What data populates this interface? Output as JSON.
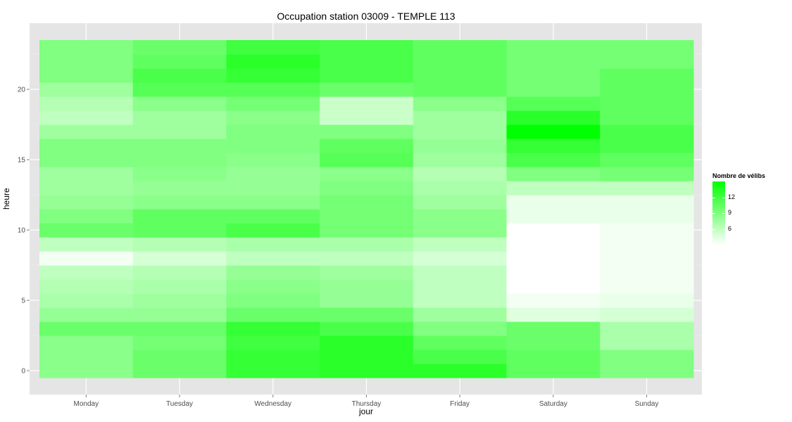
{
  "chart_data": {
    "type": "heatmap",
    "title": "Occupation station 03009 - TEMPLE 113",
    "xlabel": "jour",
    "ylabel": "heure",
    "x_categories": [
      "Monday",
      "Tuesday",
      "Wednesday",
      "Thursday",
      "Friday",
      "Saturday",
      "Sunday"
    ],
    "y_range": [
      0,
      23
    ],
    "y_ticks": [
      0,
      5,
      10,
      15,
      20
    ],
    "legend_title": "Nombre de vélibs",
    "legend_ticks": [
      6,
      9,
      12
    ],
    "color_scale": {
      "low": "#ffffff",
      "high": "#00ff00",
      "min": 3,
      "max": 15
    },
    "grid": true,
    "legend_position": "right",
    "values": [
      [
        8.5,
        10,
        12.5,
        13,
        13,
        10.5,
        9
      ],
      [
        8.5,
        10,
        12.5,
        13,
        11.5,
        10.5,
        9
      ],
      [
        8.5,
        9.5,
        12,
        13,
        10.5,
        10,
        7
      ],
      [
        10,
        10,
        12.5,
        11.5,
        9,
        10,
        7
      ],
      [
        8,
        8,
        10,
        10,
        7.5,
        4.5,
        5
      ],
      [
        7,
        7.5,
        9,
        8,
        6,
        3.5,
        4
      ],
      [
        6.5,
        7,
        8.5,
        8,
        6,
        3,
        3.5
      ],
      [
        6,
        6.5,
        8,
        7.5,
        6,
        3,
        3.5
      ],
      [
        3.5,
        5,
        6,
        6,
        5,
        3,
        3.5
      ],
      [
        6,
        6.5,
        7,
        7,
        6,
        3,
        3.5
      ],
      [
        10,
        10.5,
        11.5,
        9.5,
        8.5,
        3,
        3.5
      ],
      [
        9,
        10.5,
        10.5,
        9.5,
        8.5,
        4,
        4
      ],
      [
        8,
        8.5,
        8.5,
        9.5,
        7.5,
        4,
        4
      ],
      [
        7.5,
        8,
        8,
        9,
        7,
        6,
        6
      ],
      [
        7.5,
        8.5,
        8,
        8.5,
        6.5,
        9,
        9.5
      ],
      [
        9,
        9,
        8.5,
        11,
        7.5,
        11.5,
        10.5
      ],
      [
        9,
        9,
        9,
        10.5,
        8,
        12.5,
        11.5
      ],
      [
        7.5,
        7.5,
        9,
        9,
        7.5,
        15,
        11.5
      ],
      [
        6,
        7.5,
        8.5,
        5.5,
        7.5,
        13,
        10.5
      ],
      [
        6.5,
        8.5,
        9.5,
        5.5,
        8.5,
        11,
        10.5
      ],
      [
        7.5,
        11,
        11,
        10,
        10.5,
        9.5,
        10.5
      ],
      [
        9,
        11.5,
        12.5,
        11.5,
        10.5,
        9.5,
        10.5
      ],
      [
        9,
        10.5,
        13,
        11.5,
        10.5,
        9.5,
        9.5
      ],
      [
        9,
        10,
        12,
        11.5,
        10.5,
        9.5,
        9.5
      ]
    ]
  }
}
